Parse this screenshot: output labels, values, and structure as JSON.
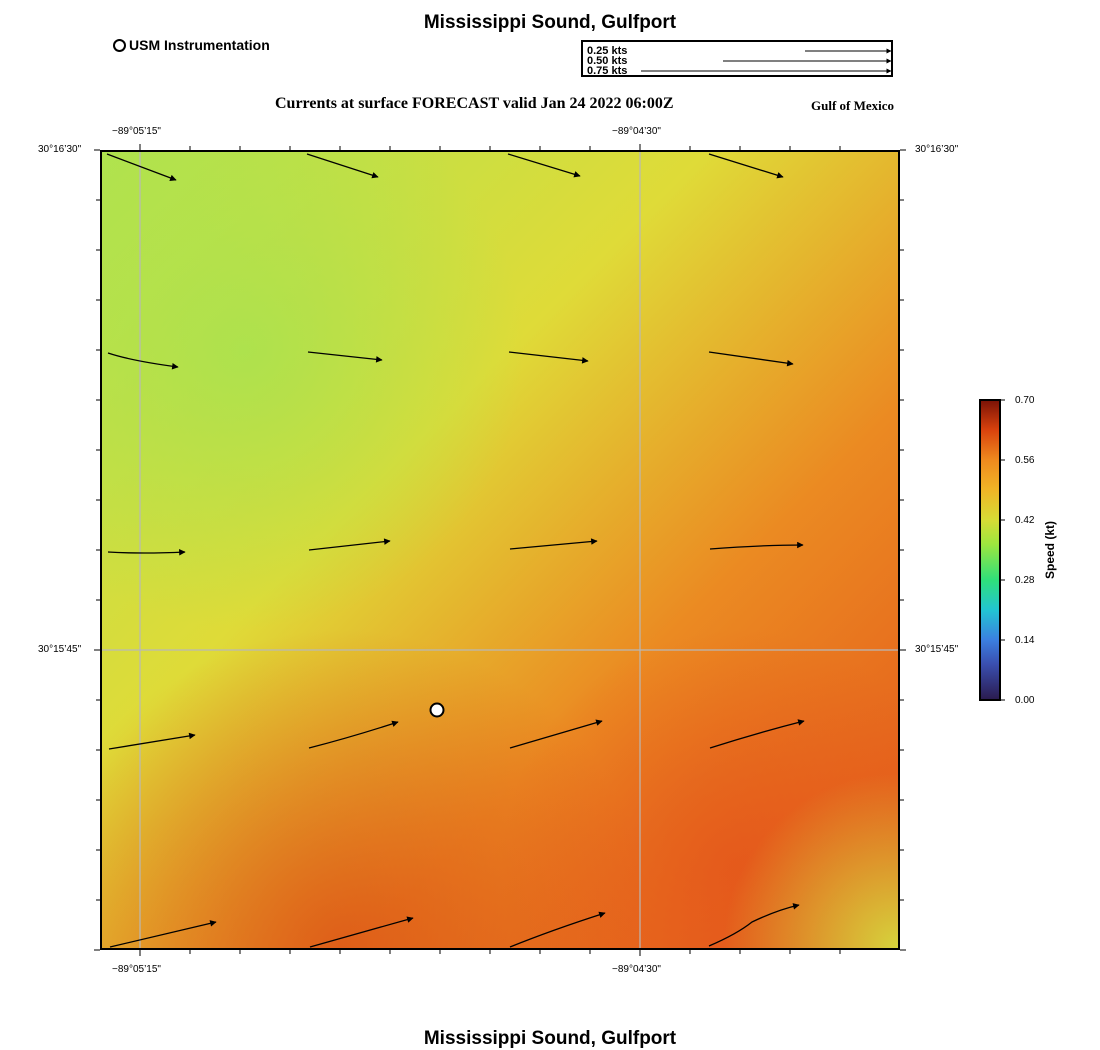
{
  "title": "Mississippi Sound, Gulfport",
  "footer_title": "Mississippi Sound, Gulfport",
  "subtitle": "Currents at surface FORECAST valid Jan 24 2022 06:00Z",
  "region_label": "Gulf of Mexico",
  "legend": {
    "marker_label": "USM Instrumentation"
  },
  "scale_box": {
    "entries": [
      {
        "label": "0.25 kts",
        "speed": 0.25
      },
      {
        "label": "0.50 kts",
        "speed": 0.5
      },
      {
        "label": "0.75 kts",
        "speed": 0.75
      }
    ]
  },
  "axes": {
    "lon_ticks": [
      "−89°05’15\"",
      "−89°04’30\""
    ],
    "lat_ticks": [
      "30°16’30\"",
      "30°15’45\""
    ]
  },
  "colorbar": {
    "title": "Speed (kt)",
    "ticks": [
      "0.70",
      "0.56",
      "0.42",
      "0.28",
      "0.14",
      "0.00"
    ],
    "colors": {
      "0.00": "#2a1b4e",
      "0.14": "#3b7fe0",
      "0.28": "#2fe07a",
      "0.42": "#d7dc35",
      "0.56": "#ef8a1e",
      "0.70": "#7a1206"
    }
  },
  "field": {
    "colors": {
      "low": "#b0e34e",
      "mid": "#dfdb38",
      "high": "#eb8a22",
      "peak": "#e3521a"
    }
  },
  "station": {
    "name": "USM Instrumentation"
  }
}
